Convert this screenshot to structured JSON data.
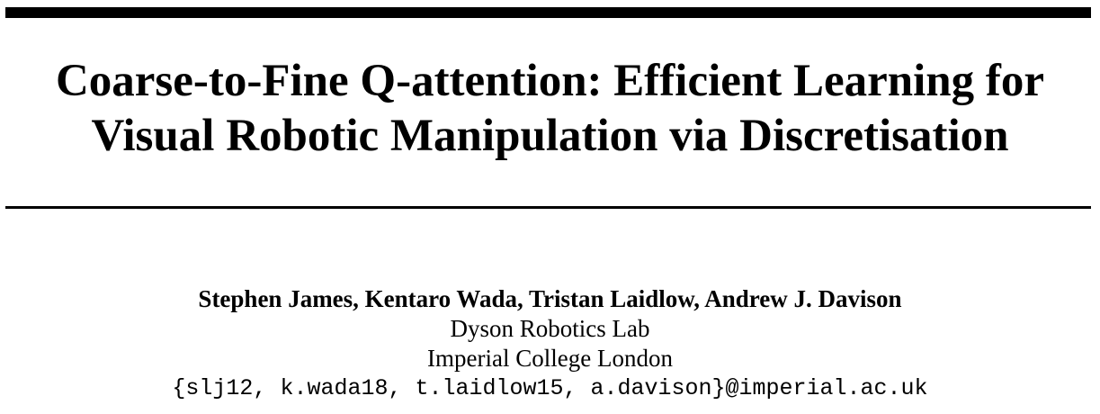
{
  "paper": {
    "title_lines": [
      "Coarse-to-Fine Q-attention: Efficient Learning for",
      "Visual Robotic Manipulation via Discretisation"
    ],
    "authors": "Stephen James, Kentaro Wada, Tristan Laidlow, Andrew J. Davison",
    "affiliation_lines": [
      "Dyson Robotics Lab",
      "Imperial College London"
    ],
    "email": "{slj12, k.wada18, t.laidlow15, a.davison}@imperial.ac.uk"
  }
}
